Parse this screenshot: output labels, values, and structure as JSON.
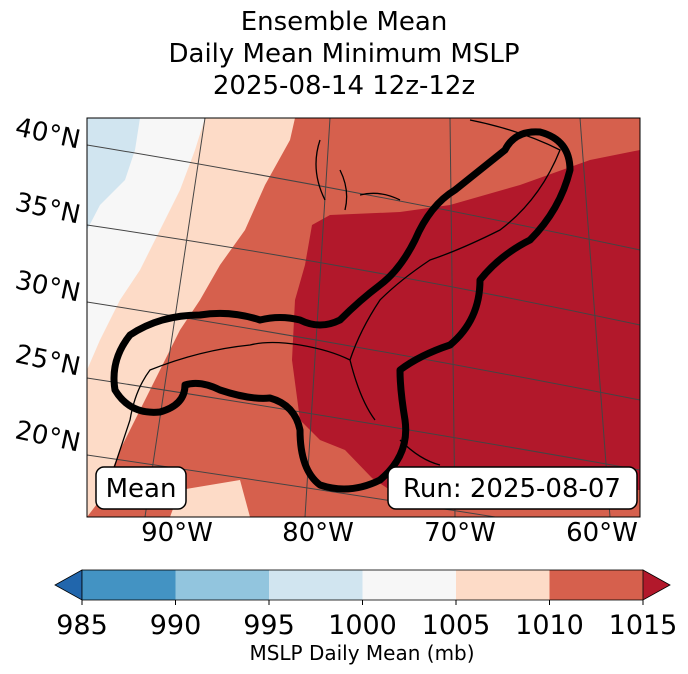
{
  "title": [
    "Ensemble Mean",
    "Daily Mean Minimum MSLP",
    "2025-08-14 12z-12z"
  ],
  "chart_data": {
    "type": "heatmap",
    "title": "Ensemble Mean Daily Mean Minimum MSLP 2025-08-14 12z-12z",
    "lat_labels": [
      "40°N",
      "35°N",
      "30°N",
      "25°N",
      "20°N"
    ],
    "lon_labels": [
      "90°W",
      "80°W",
      "70°W",
      "60°W"
    ],
    "annotations": {
      "left": "Mean",
      "right": "Run: 2025-08-07"
    },
    "colorbar": {
      "label": "MSLP Daily Mean (mb)",
      "ticks": [
        "985",
        "990",
        "995",
        "1000",
        "1005",
        "1010",
        "1015"
      ],
      "bins": [
        {
          "range": [
            985,
            990
          ],
          "color": "#4393c3"
        },
        {
          "range": [
            990,
            995
          ],
          "color": "#92c5de"
        },
        {
          "range": [
            995,
            1000
          ],
          "color": "#d1e5f0"
        },
        {
          "range": [
            1000,
            1005
          ],
          "color": "#f7f7f7"
        },
        {
          "range": [
            1005,
            1010
          ],
          "color": "#fddbc7"
        },
        {
          "range": [
            1010,
            1015
          ],
          "color": "#d6604d"
        }
      ],
      "under_color": "#2166ac",
      "over_color": "#b2182b",
      "extend": "both"
    }
  }
}
